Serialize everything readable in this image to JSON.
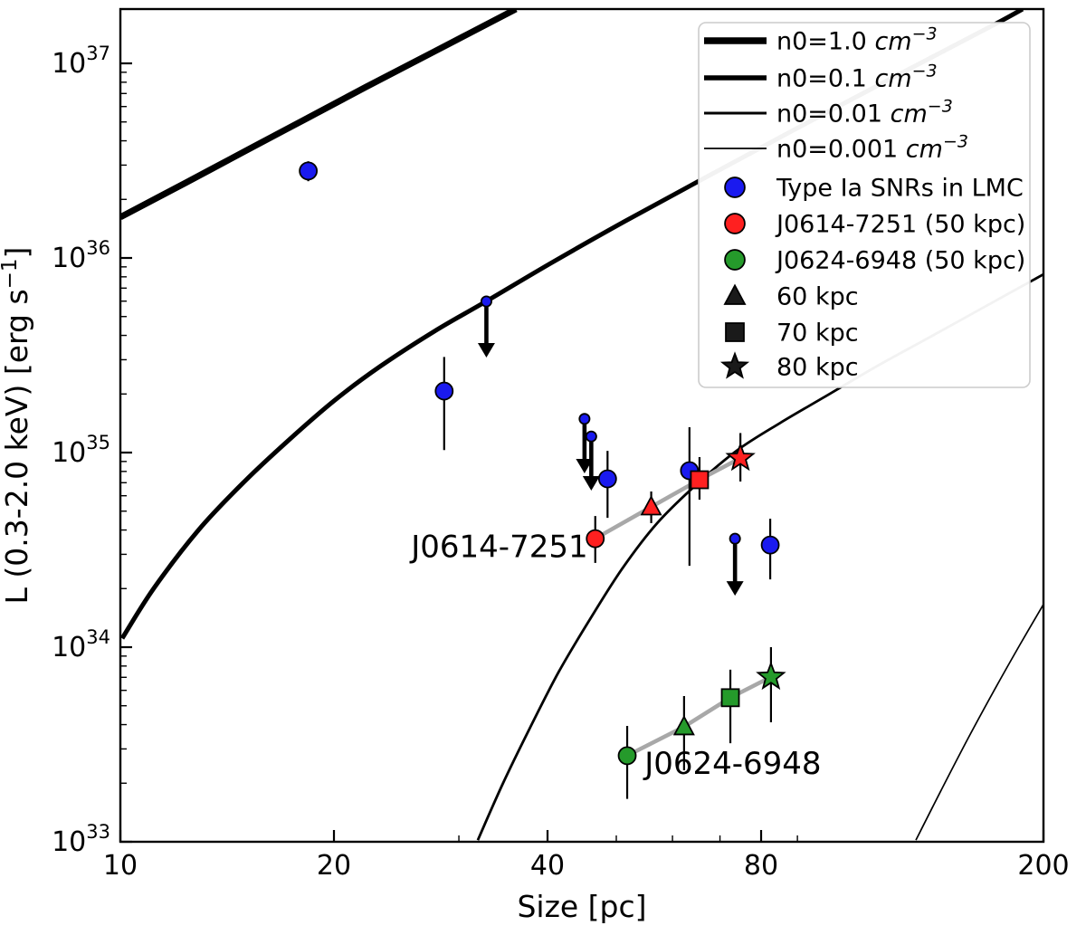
{
  "chart_data": {
    "type": "scatter",
    "title": "",
    "xlabel": "Size [pc]",
    "ylabel": {
      "text": "L (0.3-2.0 keV) [erg s",
      "sup": "−1",
      "close": "]"
    },
    "x_scale": "log",
    "y_scale": "log",
    "xlim": [
      10,
      200
    ],
    "ylim": [
      1e+33,
      1.9e+37
    ],
    "x_ticks": [
      {
        "v": 10,
        "label": "10"
      },
      {
        "v": 20,
        "label": "20"
      },
      {
        "v": 40,
        "label": "40"
      },
      {
        "v": 80,
        "label": "80"
      },
      {
        "v": 200,
        "label": "200"
      }
    ],
    "x_minor_ticks": [
      30,
      50,
      60,
      70,
      90
    ],
    "y_ticks": [
      {
        "v": 1e+33,
        "base": "10",
        "exp": "33"
      },
      {
        "v": 1e+34,
        "base": "10",
        "exp": "34"
      },
      {
        "v": 1e+35,
        "base": "10",
        "exp": "35"
      },
      {
        "v": 1e+36,
        "base": "10",
        "exp": "36"
      },
      {
        "v": 1e+37,
        "base": "10",
        "exp": "37"
      }
    ],
    "colors": {
      "blue": "#1a1aef",
      "red": "#ff2020",
      "green": "#259a2b",
      "black": "#1a1a1a",
      "connector": "#a8a8a8",
      "legend_border": "#cccccc"
    },
    "model_curves": [
      {
        "name": "n0=1.0",
        "lw": 7.0,
        "points": [
          [
            10.0,
            1.62e+36
          ],
          [
            12.35,
            2.43e+36
          ],
          [
            15.4,
            3.73e+36
          ],
          [
            18.4,
            5.26e+36
          ],
          [
            22.2,
            7.57e+36
          ],
          [
            27.7,
            1.15e+37
          ],
          [
            36.1,
            1.9e+37
          ]
        ]
      },
      {
        "name": "n0=0.1",
        "lw": 5.0,
        "points": [
          [
            10.06,
            1.11e+34
          ],
          [
            11.15,
            2.01e+34
          ],
          [
            12.91,
            4.03e+34
          ],
          [
            14.96,
            7.1e+34
          ],
          [
            17.32,
            1.17e+35
          ],
          [
            20.06,
            1.86e+35
          ],
          [
            23.23,
            2.77e+35
          ],
          [
            27.71,
            4.2e+35
          ],
          [
            32.76,
            5.98e+35
          ],
          [
            40.59,
            9.48e+35
          ],
          [
            51.35,
            1.54e+36
          ],
          [
            66.88,
            2.6e+36
          ],
          [
            89.7,
            4.62e+36
          ],
          [
            123.9,
            8.61e+36
          ],
          [
            168.7,
            1.55e+37
          ],
          [
            186.9,
            1.9e+37
          ]
        ]
      },
      {
        "name": "n0=0.01",
        "lw": 2.8,
        "points": [
          [
            31.9,
            1.02e+33
          ],
          [
            34.6,
            1.99e+33
          ],
          [
            37.8,
            3.86e+33
          ],
          [
            41.5,
            7.49e+33
          ],
          [
            45.9,
            1.39e+34
          ],
          [
            51.0,
            2.54e+34
          ],
          [
            57.1,
            4.34e+34
          ],
          [
            64.9,
            6.87e+34
          ],
          [
            74.1,
            1.03e+35
          ],
          [
            85.1,
            1.42e+35
          ],
          [
            98.0,
            1.92e+35
          ],
          [
            116.9,
            2.8e+35
          ],
          [
            139.4,
            3.98e+35
          ],
          [
            168.7,
            5.85e+35
          ],
          [
            200.0,
            8.24e+35
          ]
        ]
      },
      {
        "name": "n0=0.001",
        "lw": 1.7,
        "points": [
          [
            132.2,
            1.02e+33
          ],
          [
            143.5,
            1.84e+33
          ],
          [
            156.8,
            3.43e+33
          ],
          [
            171.2,
            6.18e+33
          ],
          [
            185.3,
            1.03e+34
          ],
          [
            200.0,
            1.66e+34
          ]
        ]
      }
    ],
    "series": [
      {
        "name": "Type Ia SNRs in LMC",
        "marker": "circle",
        "color_key": "blue",
        "detections": [
          {
            "size": 18.4,
            "L": 2.8e+36,
            "L_lo": 2.48e+36,
            "L_hi": 3.14e+36,
            "marker_size": "large"
          },
          {
            "size": 28.6,
            "L": 2.07e+35,
            "L_lo": 1.03e+35,
            "L_hi": 3.1e+35,
            "marker_size": "large"
          },
          {
            "size": 48.6,
            "L": 7.33e+34,
            "L_lo": 4.62e+34,
            "L_hi": 1.02e+35,
            "marker_size": "large"
          },
          {
            "size": 63.4,
            "L": 8.07e+34,
            "L_lo": 2.62e+34,
            "L_hi": 1.35e+35,
            "marker_size": "large"
          },
          {
            "size": 82.4,
            "L": 3.35e+34,
            "L_lo": 2.23e+34,
            "L_hi": 4.57e+34,
            "marker_size": "large"
          }
        ],
        "upper_limits": [
          {
            "size": 32.8,
            "L": 5.98e+35,
            "L_tip": 3.08e+35
          },
          {
            "size": 45.1,
            "L": 1.49e+35,
            "L_tip": 7.82e+34
          },
          {
            "size": 46.1,
            "L": 1.21e+35,
            "L_tip": 6.38e+34
          },
          {
            "size": 73.5,
            "L": 3.61e+34,
            "L_tip": 1.84e+34
          }
        ]
      },
      {
        "name": "J0614-7251",
        "color_key": "red",
        "connected": true,
        "points": [
          {
            "distance_kpc": 50,
            "marker": "circle",
            "size": 46.7,
            "L": 3.61e+34,
            "L_lo": 2.71e+34,
            "L_hi": 4.72e+34
          },
          {
            "distance_kpc": 60,
            "marker": "triangle",
            "size": 56.0,
            "L": 5.26e+34,
            "L_lo": 4.34e+34,
            "L_hi": 6.31e+34
          },
          {
            "distance_kpc": 70,
            "marker": "square",
            "size": 65.5,
            "L": 7.25e+34,
            "L_lo": 5.73e+34,
            "L_hi": 9.48e+34
          },
          {
            "distance_kpc": 80,
            "marker": "star",
            "size": 74.8,
            "L": 9.37e+34,
            "L_lo": 7.1e+34,
            "L_hi": 1.26e+35
          }
        ]
      },
      {
        "name": "J0624-6948",
        "color_key": "green",
        "connected": true,
        "points": [
          {
            "distance_kpc": 50,
            "marker": "circle",
            "size": 51.8,
            "L": 2.77e+33,
            "L_lo": 1.66e+33,
            "L_hi": 3.94e+33
          },
          {
            "distance_kpc": 60,
            "marker": "triangle",
            "size": 62.3,
            "L": 3.9e+33,
            "L_lo": 2.33e+33,
            "L_hi": 5.61e+33
          },
          {
            "distance_kpc": 70,
            "marker": "square",
            "size": 72.4,
            "L": 5.5e+33,
            "L_lo": 3.21e+33,
            "L_hi": 7.66e+33
          },
          {
            "distance_kpc": 80,
            "marker": "star",
            "size": 82.6,
            "L": 7.03e+33,
            "L_lo": 4.11e+33,
            "L_hi": 1e+34
          }
        ]
      }
    ],
    "annotations": [
      {
        "text": "J0614-7251",
        "at_size": 45.6,
        "at_L": 2.9e+34,
        "anchor": "end"
      },
      {
        "text": "J0624-6948",
        "at_size": 54.8,
        "at_L": 2.23e+33,
        "anchor": "start"
      }
    ],
    "legend": {
      "entries": [
        {
          "type": "line",
          "lw": 7.5,
          "label": "n0=1.0 ",
          "unit": "cm",
          "unit_sup": "−3"
        },
        {
          "type": "line",
          "lw": 5.5,
          "label": "n0=0.1 ",
          "unit": "cm",
          "unit_sup": "−3"
        },
        {
          "type": "line",
          "lw": 3.0,
          "label": "n0=0.01 ",
          "unit": "cm",
          "unit_sup": "−3"
        },
        {
          "type": "line",
          "lw": 1.8,
          "label": "n0=0.001 ",
          "unit": "cm",
          "unit_sup": "−3"
        },
        {
          "type": "circle",
          "color_key": "blue",
          "label": "Type Ia SNRs in LMC"
        },
        {
          "type": "circle",
          "color_key": "red",
          "label": "J0614-7251 (50 kpc)"
        },
        {
          "type": "circle",
          "color_key": "green",
          "label": "J0624-6948 (50 kpc)"
        },
        {
          "type": "triangle",
          "color_key": "black",
          "label": "60 kpc"
        },
        {
          "type": "square",
          "color_key": "black",
          "label": "70 kpc"
        },
        {
          "type": "star",
          "color_key": "black",
          "label": "80 kpc"
        }
      ]
    }
  }
}
